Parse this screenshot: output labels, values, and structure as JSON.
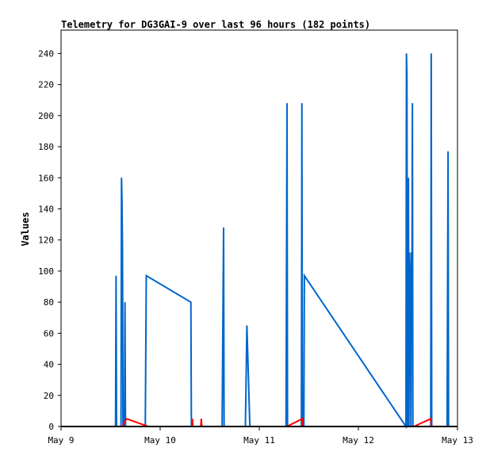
{
  "chart_data": {
    "type": "line",
    "title": "Telemetry for DG3GAI-9 over last 96 hours (182 points)",
    "xlabel": "",
    "ylabel": "Values",
    "x_ticks": [
      "May 9",
      "May 10",
      "May 11",
      "May 12",
      "May 13"
    ],
    "xlim_days": [
      9,
      13
    ],
    "y_ticks": [
      0,
      20,
      40,
      60,
      80,
      100,
      120,
      140,
      160,
      180,
      200,
      220,
      240
    ],
    "ylim": [
      0,
      255
    ],
    "grid": false,
    "legend": "none",
    "series": [
      {
        "color": "#0066cc",
        "points": [
          [
            9.0,
            0
          ],
          [
            9.55,
            0
          ],
          [
            9.555,
            97
          ],
          [
            9.56,
            0
          ],
          [
            9.605,
            0
          ],
          [
            9.61,
            160
          ],
          [
            9.615,
            145
          ],
          [
            9.62,
            113
          ],
          [
            9.625,
            0
          ],
          [
            9.64,
            0
          ],
          [
            9.645,
            80
          ],
          [
            9.65,
            0
          ],
          [
            9.85,
            0
          ],
          [
            9.86,
            97
          ],
          [
            10.31,
            80
          ],
          [
            10.315,
            0
          ],
          [
            10.625,
            0
          ],
          [
            10.64,
            128
          ],
          [
            10.645,
            0
          ],
          [
            10.86,
            0
          ],
          [
            10.875,
            65
          ],
          [
            10.905,
            0
          ],
          [
            11.27,
            0
          ],
          [
            11.275,
            105
          ],
          [
            11.28,
            208
          ],
          [
            11.285,
            0
          ],
          [
            11.425,
            0
          ],
          [
            11.43,
            208
          ],
          [
            11.435,
            0
          ],
          [
            11.45,
            0
          ],
          [
            11.455,
            97
          ],
          [
            12.48,
            0
          ],
          [
            12.485,
            240
          ],
          [
            12.49,
            225
          ],
          [
            12.495,
            0
          ],
          [
            12.5,
            112
          ],
          [
            12.505,
            160
          ],
          [
            12.51,
            0
          ],
          [
            12.515,
            112
          ],
          [
            12.52,
            98
          ],
          [
            12.525,
            65
          ],
          [
            12.53,
            0
          ],
          [
            12.535,
            112
          ],
          [
            12.54,
            70
          ],
          [
            12.545,
            208
          ],
          [
            12.55,
            0
          ],
          [
            12.73,
            0
          ],
          [
            12.735,
            240
          ],
          [
            12.74,
            0
          ],
          [
            12.895,
            0
          ],
          [
            12.9,
            88
          ],
          [
            12.905,
            177
          ],
          [
            12.91,
            0
          ],
          [
            13.0,
            0
          ]
        ]
      },
      {
        "color": "#ff0000",
        "points": [
          [
            9.0,
            0
          ],
          [
            9.62,
            0
          ],
          [
            9.66,
            5
          ],
          [
            9.88,
            0
          ],
          [
            10.32,
            0
          ],
          [
            10.325,
            5
          ],
          [
            10.33,
            0
          ],
          [
            10.41,
            0
          ],
          [
            10.415,
            5
          ],
          [
            10.42,
            0
          ],
          [
            11.28,
            0
          ],
          [
            11.435,
            5
          ],
          [
            11.44,
            0
          ],
          [
            12.56,
            0
          ],
          [
            12.73,
            5
          ],
          [
            12.74,
            0
          ],
          [
            13.0,
            0
          ]
        ]
      },
      {
        "color": "#000000",
        "points": [
          [
            9.0,
            0
          ],
          [
            13.0,
            0
          ]
        ]
      }
    ]
  }
}
